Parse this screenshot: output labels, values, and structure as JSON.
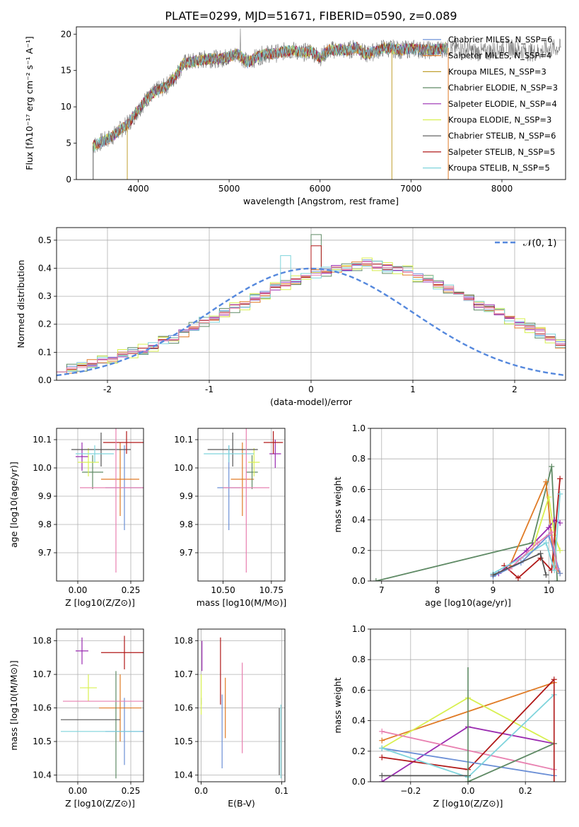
{
  "figure_title": "PLATE=0299, MJD=51671, FIBERID=0590, z=0.089",
  "colors": {
    "blue": "#6b8fd6",
    "orange": "#e07b26",
    "khaki": "#c0a030",
    "green": "#5f8a65",
    "purple": "#9a2bb0",
    "lime": "#d8f050",
    "gray": "#555555",
    "red": "#b01818",
    "cyan": "#7fd4dc",
    "pink": "#e880b0",
    "grid": "#b0b0b0",
    "gauss": "#5588dd"
  },
  "chart_data": [
    {
      "id": "spectrum",
      "type": "line",
      "title": "PLATE=0299, MJD=51671, FIBERID=0590, z=0.089",
      "xlabel": "wavelength [Angstrom, rest frame]",
      "ylabel": "Flux [fλ10⁻¹⁷ erg cm⁻² s⁻¹ A⁻¹]",
      "xlim": [
        3320,
        8700
      ],
      "ylim": [
        0,
        21
      ],
      "xticks": [
        4000,
        5000,
        6000,
        7000,
        8000
      ],
      "yticks": [
        0,
        5,
        10,
        15,
        20
      ],
      "grid": false,
      "legend_position": "upper-right",
      "x": [
        3500,
        3600,
        3700,
        3800,
        3900,
        4000,
        4100,
        4200,
        4300,
        4400,
        4500,
        4600,
        4700,
        4800,
        4900,
        5000,
        5100,
        5200,
        5300,
        5400,
        5500,
        5600,
        5700,
        5800,
        5900,
        6000,
        6100,
        6200,
        6300,
        6400,
        6500,
        6600,
        6700,
        6800,
        6900,
        7000,
        7100,
        7200,
        7300,
        7400
      ],
      "y": [
        4.6,
        5.2,
        5.8,
        6.8,
        7.8,
        9.6,
        11.2,
        12.2,
        12.8,
        14.0,
        16.0,
        16.2,
        16.5,
        16.6,
        16.6,
        16.9,
        17.3,
        16.1,
        16.8,
        17.3,
        17.3,
        17.6,
        17.8,
        17.4,
        17.7,
        16.8,
        17.8,
        17.9,
        17.7,
        18.2,
        17.2,
        17.6,
        18.1,
        18.0,
        17.8,
        18.0,
        17.9,
        17.8,
        17.9,
        18.1
      ],
      "data_x": [
        8000
      ],
      "series": [
        {
          "name": "Chabrier MILES, N_SSP=6",
          "color": "#6b8fd6"
        },
        {
          "name": "Salpeter MILES, N_SSP=4",
          "color": "#e07b26"
        },
        {
          "name": "Kroupa MILES, N_SSP=3",
          "color": "#c0a030"
        },
        {
          "name": "Chabrier ELODIE, N_SSP=3",
          "color": "#5f8a65"
        },
        {
          "name": "Salpeter ELODIE, N_SSP=4",
          "color": "#9a2bb0"
        },
        {
          "name": "Kroupa ELODIE, N_SSP=3",
          "color": "#d8f050"
        },
        {
          "name": "Chabrier STELIB, N_SSP=6",
          "color": "#555555"
        },
        {
          "name": "Salpeter STELIB, N_SSP=5",
          "color": "#b01818"
        },
        {
          "name": "Kroupa STELIB, N_SSP=5",
          "color": "#7fd4dc"
        }
      ]
    },
    {
      "id": "residuals",
      "type": "bar",
      "xlabel": "(data-model)/error",
      "ylabel": "Normed distribution",
      "xlim": [
        -2.5,
        2.5
      ],
      "ylim": [
        0,
        0.545
      ],
      "xticks": [
        -2,
        -1,
        0,
        1,
        2
      ],
      "yticks": [
        0.0,
        0.1,
        0.2,
        0.3,
        0.4,
        0.5
      ],
      "grid": true,
      "bin_width": 0.1,
      "bin_start": -2.5,
      "values": [
        0.03,
        0.04,
        0.05,
        0.06,
        0.07,
        0.08,
        0.09,
        0.1,
        0.11,
        0.12,
        0.14,
        0.15,
        0.17,
        0.19,
        0.21,
        0.22,
        0.24,
        0.26,
        0.27,
        0.29,
        0.31,
        0.33,
        0.34,
        0.36,
        0.37,
        0.38,
        0.39,
        0.4,
        0.4,
        0.41,
        0.42,
        0.41,
        0.4,
        0.4,
        0.39,
        0.37,
        0.36,
        0.34,
        0.33,
        0.31,
        0.29,
        0.27,
        0.26,
        0.24,
        0.22,
        0.2,
        0.19,
        0.17,
        0.15,
        0.13
      ],
      "series": [
        {
          "name": "",
          "color": "#6b8fd6",
          "offset": 0.01
        },
        {
          "name": "",
          "color": "#e07b26",
          "offset": -0.015
        },
        {
          "name": "",
          "color": "#5f8a65",
          "offset": 0.02
        },
        {
          "name": "",
          "color": "#9a2bb0",
          "offset": -0.01
        },
        {
          "name": "",
          "color": "#d8f050",
          "offset": -0.02
        },
        {
          "name": "",
          "color": "#b01818",
          "offset": 0.005
        },
        {
          "name": "",
          "color": "#7fd4dc",
          "offset": 0.015
        },
        {
          "name": "",
          "color": "#e880b0",
          "offset": -0.005
        }
      ],
      "gauss_label": "𝒩(0, 1)"
    },
    {
      "id": "age_vs_Z",
      "type": "scatter",
      "xlabel": "Z [log10(Z/Z⊙)]",
      "ylabel": "age  [log10(age/yr)]",
      "xlim": [
        -0.1,
        0.31
      ],
      "ylim": [
        9.6,
        10.14
      ],
      "xticks": [
        0.0,
        0.25
      ],
      "xticklabels": [
        "0.00",
        "0.25"
      ],
      "yticks": [
        9.7,
        9.8,
        9.9,
        10.0,
        10.1
      ],
      "grid": true,
      "points": [
        {
          "x": 0.22,
          "y": 9.93,
          "xerr": 0.09,
          "yerr": 0.15,
          "color": "#6b8fd6"
        },
        {
          "x": 0.2,
          "y": 9.96,
          "xerr": 0.09,
          "yerr": 0.13,
          "color": "#e07b26"
        },
        {
          "x": 0.07,
          "y": 9.985,
          "xerr": 0.05,
          "yerr": 0.06,
          "color": "#5f8a65"
        },
        {
          "x": 0.02,
          "y": 10.04,
          "xerr": 0.03,
          "yerr": 0.05,
          "color": "#9a2bb0"
        },
        {
          "x": 0.05,
          "y": 10.02,
          "xerr": 0.05,
          "yerr": 0.05,
          "color": "#d8f050"
        },
        {
          "x": 0.11,
          "y": 10.065,
          "xerr": 0.14,
          "yerr": 0.06,
          "color": "#555555"
        },
        {
          "x": 0.23,
          "y": 10.09,
          "xerr": 0.11,
          "yerr": 0.04,
          "color": "#b01818"
        },
        {
          "x": 0.08,
          "y": 10.05,
          "xerr": 0.09,
          "yerr": 0.03,
          "color": "#7fd4dc"
        },
        {
          "x": 0.18,
          "y": 9.93,
          "xerr": 0.17,
          "yerr": 0.3,
          "color": "#e880b0"
        }
      ]
    },
    {
      "id": "age_vs_mass",
      "type": "scatter",
      "xlabel": "mass [log10(M/M⊙)]",
      "xlim": [
        10.37,
        10.82
      ],
      "ylim": [
        9.6,
        10.14
      ],
      "xticks": [
        10.5,
        10.75
      ],
      "xticklabels": [
        "10.50",
        "10.75"
      ],
      "yticks": [
        9.7,
        9.8,
        9.9,
        10.0,
        10.1
      ],
      "grid": true,
      "points": [
        {
          "x": 10.53,
          "y": 9.93,
          "xerr": 0.06,
          "yerr": 0.15,
          "color": "#6b8fd6"
        },
        {
          "x": 10.6,
          "y": 9.96,
          "xerr": 0.06,
          "yerr": 0.13,
          "color": "#e07b26"
        },
        {
          "x": 10.65,
          "y": 9.985,
          "xerr": 0.03,
          "yerr": 0.06,
          "color": "#5f8a65"
        },
        {
          "x": 10.77,
          "y": 10.05,
          "xerr": 0.03,
          "yerr": 0.05,
          "color": "#9a2bb0"
        },
        {
          "x": 10.66,
          "y": 10.02,
          "xerr": 0.03,
          "yerr": 0.05,
          "color": "#d8f050"
        },
        {
          "x": 10.55,
          "y": 10.065,
          "xerr": 0.13,
          "yerr": 0.06,
          "color": "#555555"
        },
        {
          "x": 10.76,
          "y": 10.09,
          "xerr": 0.05,
          "yerr": 0.04,
          "color": "#b01818"
        },
        {
          "x": 10.53,
          "y": 10.05,
          "xerr": 0.13,
          "yerr": 0.03,
          "color": "#7fd4dc"
        },
        {
          "x": 10.62,
          "y": 9.93,
          "xerr": 0.12,
          "yerr": 0.3,
          "color": "#e880b0"
        }
      ]
    },
    {
      "id": "weight_vs_age",
      "type": "line",
      "xlabel": "age  [log10(age/yr)]",
      "ylabel": "mass weight",
      "xlim": [
        6.8,
        10.3
      ],
      "ylim": [
        0,
        1.0
      ],
      "xticks": [
        7,
        8,
        9,
        10
      ],
      "yticks": [
        0.0,
        0.2,
        0.4,
        0.6,
        0.8,
        1.0
      ],
      "grid": true,
      "series": [
        {
          "name": "",
          "color": "#5f8a65",
          "x": [
            6.9,
            9.7,
            10.05,
            10.15
          ],
          "y": [
            0.0,
            0.25,
            0.75,
            0.0
          ]
        },
        {
          "name": "",
          "color": "#e07b26",
          "x": [
            9.3,
            9.95,
            10.1,
            10.2
          ],
          "y": [
            0.1,
            0.65,
            0.1,
            0.05
          ]
        },
        {
          "name": "",
          "color": "#9a2bb0",
          "x": [
            9.1,
            9.6,
            10.0,
            10.1,
            10.2
          ],
          "y": [
            0.05,
            0.2,
            0.35,
            0.4,
            0.38
          ]
        },
        {
          "name": "",
          "color": "#d8f050",
          "x": [
            9.7,
            10.0,
            10.1,
            10.2
          ],
          "y": [
            0.2,
            0.55,
            0.3,
            0.2
          ]
        },
        {
          "name": "",
          "color": "#b01818",
          "x": [
            9.2,
            9.45,
            9.85,
            10.05,
            10.2
          ],
          "y": [
            0.1,
            0.02,
            0.15,
            0.07,
            0.67
          ]
        },
        {
          "name": "",
          "color": "#7fd4dc",
          "x": [
            9.0,
            9.5,
            9.95,
            10.1,
            10.2
          ],
          "y": [
            0.05,
            0.15,
            0.25,
            0.07,
            0.57
          ]
        },
        {
          "name": "",
          "color": "#6b8fd6",
          "x": [
            9.0,
            9.5,
            10.0,
            10.2
          ],
          "y": [
            0.03,
            0.12,
            0.3,
            0.05
          ]
        },
        {
          "name": "",
          "color": "#e880b0",
          "x": [
            9.3,
            9.8,
            10.05,
            10.15
          ],
          "y": [
            0.08,
            0.25,
            0.32,
            0.08
          ]
        },
        {
          "name": "",
          "color": "#555555",
          "x": [
            9.0,
            9.85,
            9.95
          ],
          "y": [
            0.04,
            0.18,
            0.04
          ]
        }
      ]
    },
    {
      "id": "mass_vs_Z",
      "type": "scatter",
      "xlabel": "Z [log10(Z/Z⊙)]",
      "ylabel": "mass [log10(M/M⊙)]",
      "xlim": [
        -0.1,
        0.31
      ],
      "ylim": [
        10.38,
        10.835
      ],
      "xticks": [
        0.0,
        0.25
      ],
      "xticklabels": [
        "0.00",
        "0.25"
      ],
      "yticks": [
        10.4,
        10.5,
        10.6,
        10.7,
        10.8
      ],
      "grid": true,
      "points": [
        {
          "x": 0.22,
          "y": 10.53,
          "xerr": 0.09,
          "yerr": 0.1,
          "color": "#6b8fd6"
        },
        {
          "x": 0.2,
          "y": 10.6,
          "xerr": 0.1,
          "yerr": 0.1,
          "color": "#e07b26"
        },
        {
          "x": 0.18,
          "y": 10.55,
          "xerr": 0.0,
          "yerr": 0.16,
          "color": "#5f8a65"
        },
        {
          "x": 0.02,
          "y": 10.77,
          "xerr": 0.03,
          "yerr": 0.04,
          "color": "#9a2bb0"
        },
        {
          "x": 0.05,
          "y": 10.66,
          "xerr": 0.04,
          "yerr": 0.04,
          "color": "#d8f050"
        },
        {
          "x": 0.06,
          "y": 10.565,
          "xerr": 0.14,
          "yerr": 0.0,
          "color": "#555555"
        },
        {
          "x": 0.22,
          "y": 10.765,
          "xerr": 0.11,
          "yerr": 0.05,
          "color": "#b01818"
        },
        {
          "x": 0.11,
          "y": 10.53,
          "xerr": 0.19,
          "yerr": 0.0,
          "color": "#7fd4dc"
        },
        {
          "x": 0.12,
          "y": 10.62,
          "xerr": 0.19,
          "yerr": 0.0,
          "color": "#e880b0"
        }
      ]
    },
    {
      "id": "mass_vs_EBV",
      "type": "scatter",
      "xlabel": "E(B-V)",
      "xlim": [
        -0.004,
        0.104
      ],
      "ylim": [
        10.38,
        10.835
      ],
      "xticks": [
        0.0,
        0.1
      ],
      "xticklabels": [
        "0.0",
        "0.1"
      ],
      "yticks": [
        10.4,
        10.5,
        10.6,
        10.7,
        10.8
      ],
      "grid": true,
      "points": [
        {
          "x": 0.026,
          "y": 10.53,
          "xerr": 0.0,
          "yerr": 0.11,
          "color": "#6b8fd6"
        },
        {
          "x": 0.03,
          "y": 10.6,
          "xerr": 0.0,
          "yerr": 0.09,
          "color": "#e07b26"
        },
        {
          "x": 0.0,
          "y": 10.62,
          "xerr": 0.0,
          "yerr": 0.01,
          "color": "#5f8a65"
        },
        {
          "x": 0.001,
          "y": 10.755,
          "xerr": 0.0,
          "yerr": 0.045,
          "color": "#9a2bb0"
        },
        {
          "x": 0.0,
          "y": 10.64,
          "xerr": 0.0,
          "yerr": 0.06,
          "color": "#d8f050"
        },
        {
          "x": 0.097,
          "y": 10.5,
          "xerr": 0.0,
          "yerr": 0.1,
          "color": "#555555"
        },
        {
          "x": 0.024,
          "y": 10.71,
          "xerr": 0.0,
          "yerr": 0.1,
          "color": "#b01818"
        },
        {
          "x": 0.099,
          "y": 10.5,
          "xerr": 0.0,
          "yerr": 0.11,
          "color": "#7fd4dc"
        },
        {
          "x": 0.051,
          "y": 10.6,
          "xerr": 0.0,
          "yerr": 0.135,
          "color": "#e880b0"
        }
      ]
    },
    {
      "id": "weight_vs_Z",
      "type": "line",
      "xlabel": "Z [log10(Z/Z⊙)]",
      "ylabel": "mass weight",
      "xlim": [
        -0.34,
        0.34
      ],
      "ylim": [
        0,
        1.0
      ],
      "xticks": [
        -0.2,
        0.0,
        0.2
      ],
      "xticklabels": [
        "−0.2",
        "0.0",
        "0.2"
      ],
      "yticks": [
        0.0,
        0.2,
        0.4,
        0.6,
        0.8,
        1.0
      ],
      "grid": true,
      "series": [
        {
          "name": "",
          "color": "#e07b26",
          "x": [
            -0.3,
            0.3
          ],
          "y": [
            0.27,
            0.65
          ]
        },
        {
          "name": "",
          "color": "#d8f050",
          "x": [
            -0.3,
            0.0,
            0.3
          ],
          "y": [
            0.22,
            0.55,
            0.25
          ]
        },
        {
          "name": "",
          "color": "#9a2bb0",
          "x": [
            -0.3,
            0.0,
            0.3
          ],
          "y": [
            0.0,
            0.36,
            0.25
          ]
        },
        {
          "name": "",
          "color": "#e880b0",
          "x": [
            -0.3,
            0.3
          ],
          "y": [
            0.33,
            0.08
          ]
        },
        {
          "name": "",
          "color": "#b01818",
          "x": [
            -0.3,
            0.0,
            0.3
          ],
          "y": [
            0.16,
            0.08,
            0.67
          ]
        },
        {
          "name": "",
          "color": "#6b8fd6",
          "x": [
            -0.3,
            0.3
          ],
          "y": [
            0.22,
            0.04
          ]
        },
        {
          "name": "",
          "color": "#7fd4dc",
          "x": [
            -0.3,
            0.0,
            0.3
          ],
          "y": [
            0.22,
            0.03,
            0.57
          ]
        },
        {
          "name": "",
          "color": "#5f8a65",
          "x": [
            0.0,
            0.3
          ],
          "y": [
            0.0,
            0.25
          ]
        },
        {
          "name": "",
          "color": "#555555",
          "x": [
            -0.3,
            0.0
          ],
          "y": [
            0.04,
            0.04
          ]
        }
      ],
      "vertical_markers": [
        {
          "x": 0.0,
          "ymin": 0.0,
          "ymax": 0.75,
          "color": "#5f8a65"
        },
        {
          "x": 0.3,
          "ymin": 0.0,
          "ymax": 0.67,
          "color": "#b01818"
        }
      ]
    }
  ]
}
